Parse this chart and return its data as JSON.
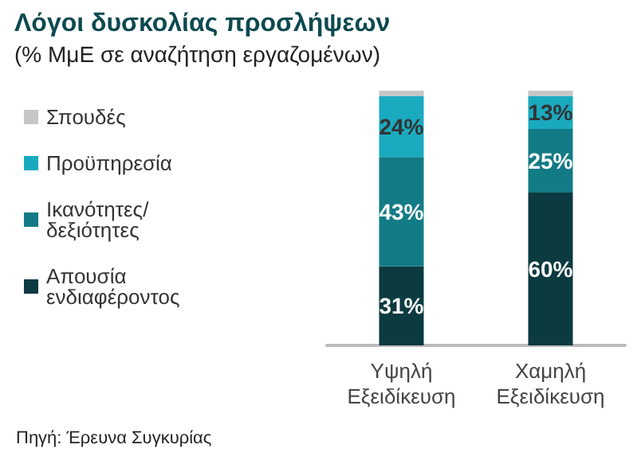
{
  "chart_data": {
    "type": "bar",
    "title": "Λόγοι δυσκολίας προσλήψεων",
    "subtitle": "(% ΜμΕ σε αναζήτηση εργαζομένων)",
    "categories": [
      "Υψηλή Εξειδίκευση",
      "Χαμηλή Εξειδίκευση"
    ],
    "stacked": true,
    "relative": false,
    "legend": "left",
    "series": [
      {
        "name": "Απουσία ενδιαφέροντος",
        "color": "#0b3a40",
        "values": [
          31,
          60
        ],
        "value_labels": [
          "31%",
          "60%"
        ]
      },
      {
        "name": "Ικανότητες/ δεξιότητες",
        "color": "#127b86",
        "values": [
          43,
          25
        ],
        "value_labels": [
          "43%",
          "25%"
        ]
      },
      {
        "name": "Προϋπηρεσία",
        "color": "#1aaac0",
        "values": [
          24,
          13
        ],
        "value_labels": [
          "24%",
          "13%"
        ]
      },
      {
        "name": "Σπουδές",
        "color": "#c6c6c6",
        "values": [
          2,
          2
        ],
        "value_labels": [
          null,
          null
        ]
      }
    ],
    "annotations": [
      "Πηγή: Έρευνα Συγκυρίας"
    ]
  }
}
